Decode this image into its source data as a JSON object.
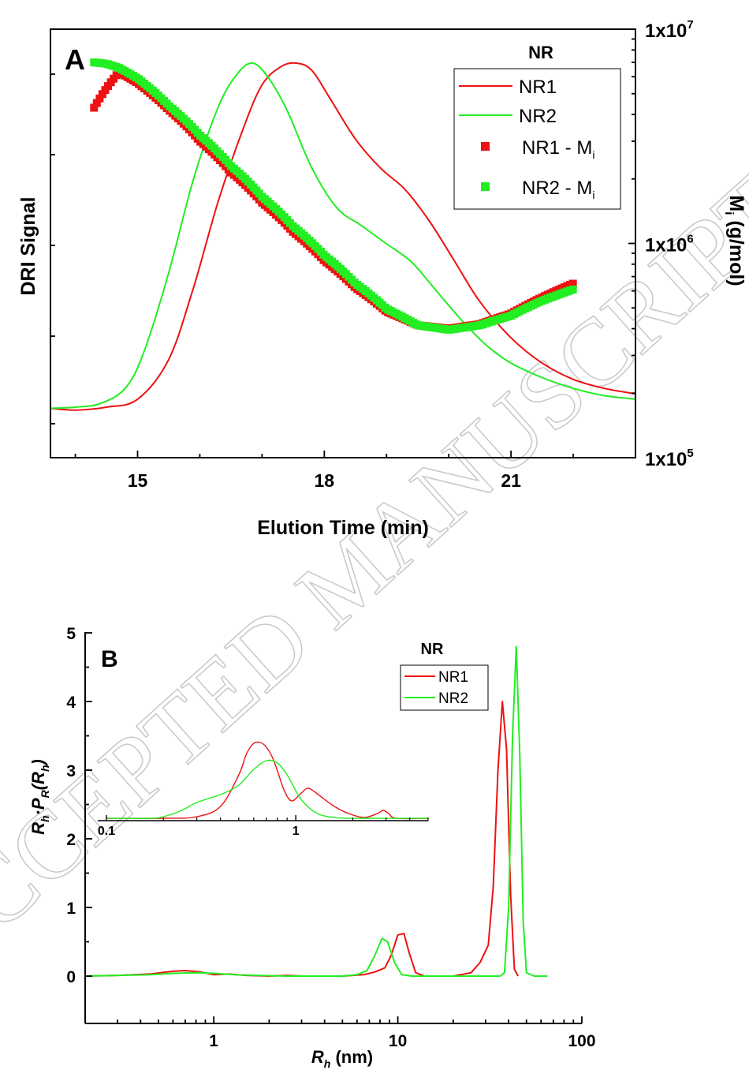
{
  "watermark": "ACCEPTED MANUSCRIPT",
  "colors": {
    "nr1": "#ee1111",
    "nr2": "#22ee22"
  },
  "chart_data": [
    {
      "id": "A",
      "type": "line",
      "panel_label": "A",
      "xlabel": "Elution Time (min)",
      "ylabel": "DRI Signal",
      "y2label": "M",
      "y2label_sub": "i",
      "y2label_unit": " (g/mol)",
      "xlim": [
        13.6,
        23.0
      ],
      "xticks": [
        15,
        18,
        21
      ],
      "xtick_labels": [
        "15",
        "18",
        "21"
      ],
      "y2lim": [
        100000,
        10000000
      ],
      "y2scale": "log",
      "y2ticks": [
        {
          "base": "1x10",
          "exp": "5"
        },
        {
          "base": "1x10",
          "exp": "6"
        },
        {
          "base": "1x10",
          "exp": "7"
        }
      ],
      "legend_title": "NR",
      "legend": [
        {
          "label": "NR1",
          "sub": "",
          "kind": "line",
          "color": "#ee1111"
        },
        {
          "label": "NR2",
          "sub": "",
          "kind": "line",
          "color": "#22ee22"
        },
        {
          "label": "NR1 - M",
          "sub": "i",
          "kind": "marker",
          "color": "#ee1111"
        },
        {
          "label": "NR2 - M",
          "sub": "i",
          "kind": "marker",
          "color": "#22ee22"
        }
      ],
      "series": [
        {
          "name": "NR1",
          "axis": "left",
          "color": "#ee1111",
          "x": [
            13.6,
            14.0,
            14.5,
            15.0,
            15.5,
            15.9,
            16.3,
            16.7,
            17.0,
            17.3,
            17.55,
            17.8,
            18.1,
            18.5,
            18.9,
            19.3,
            19.7,
            20.1,
            20.5,
            21.0,
            21.5,
            22.0,
            22.5,
            23.0
          ],
          "y": [
            0.045,
            0.04,
            0.048,
            0.07,
            0.18,
            0.38,
            0.62,
            0.82,
            0.94,
            0.99,
            1.0,
            0.98,
            0.9,
            0.79,
            0.71,
            0.65,
            0.56,
            0.45,
            0.34,
            0.24,
            0.17,
            0.125,
            0.1,
            0.085
          ]
        },
        {
          "name": "NR2",
          "axis": "left",
          "color": "#22ee22",
          "x": [
            13.6,
            14.0,
            14.4,
            14.8,
            15.1,
            15.5,
            15.9,
            16.3,
            16.6,
            16.85,
            17.1,
            17.4,
            17.8,
            18.2,
            18.6,
            19.0,
            19.4,
            19.8,
            20.2,
            20.6,
            21.0,
            21.5,
            22.0,
            22.5,
            23.0
          ],
          "y": [
            0.045,
            0.048,
            0.058,
            0.1,
            0.2,
            0.42,
            0.68,
            0.88,
            0.97,
            1.0,
            0.96,
            0.87,
            0.71,
            0.6,
            0.55,
            0.5,
            0.45,
            0.37,
            0.29,
            0.22,
            0.17,
            0.13,
            0.1,
            0.08,
            0.07
          ]
        },
        {
          "name": "NR1 - Mi",
          "axis": "right",
          "color": "#ee1111",
          "x": [
            14.3,
            14.5,
            14.7,
            15.0,
            15.5,
            16.0,
            16.5,
            17.0,
            17.5,
            18.0,
            18.5,
            19.0,
            19.5,
            20.0,
            20.5,
            21.0,
            21.5,
            22.0
          ],
          "y": [
            4300000,
            5300000,
            6300000,
            5600000,
            4200000,
            3000000,
            2150000,
            1550000,
            1130000,
            830000,
            620000,
            480000,
            415000,
            400000,
            420000,
            470000,
            560000,
            650000
          ]
        },
        {
          "name": "NR2 - Mi",
          "axis": "right",
          "color": "#22ee22",
          "x": [
            14.3,
            14.5,
            14.7,
            15.0,
            15.5,
            16.0,
            16.5,
            17.0,
            17.5,
            18.0,
            18.5,
            19.0,
            19.5,
            20.0,
            20.5,
            21.0,
            21.5,
            22.0
          ],
          "y": [
            7000000,
            6900000,
            6600000,
            5900000,
            4400000,
            3200000,
            2300000,
            1650000,
            1200000,
            880000,
            650000,
            495000,
            415000,
            395000,
            415000,
            460000,
            540000,
            610000
          ]
        }
      ]
    },
    {
      "id": "B",
      "type": "line",
      "panel_label": "B",
      "xlabel": "R",
      "xlabel_sub": "h",
      "xlabel_unit": " (nm)",
      "ylabel_parts": [
        "R",
        "h",
        "·P",
        "R",
        "(R",
        "h",
        ")"
      ],
      "xscale": "log",
      "xlim": [
        0.2,
        100
      ],
      "ylim": [
        -0.2,
        5.0
      ],
      "xticks": [
        1,
        10,
        100
      ],
      "xtick_labels": [
        "1",
        "10",
        "100"
      ],
      "yticks": [
        0,
        1,
        2,
        3,
        4,
        5
      ],
      "ytick_labels": [
        "0",
        "1",
        "2",
        "3",
        "4",
        "5"
      ],
      "legend_title": "NR",
      "legend": [
        {
          "label": "NR1",
          "color": "#ee1111"
        },
        {
          "label": "NR2",
          "color": "#22ee22"
        }
      ],
      "series": [
        {
          "name": "NR1",
          "color": "#ee1111",
          "x": [
            0.2,
            0.3,
            0.45,
            0.6,
            0.7,
            0.85,
            1.0,
            1.2,
            1.5,
            2.0,
            2.5,
            3.0,
            5.0,
            6.5,
            7.5,
            8.5,
            9.2,
            10.0,
            10.8,
            11.5,
            12.5,
            14,
            20,
            25,
            28,
            31,
            33,
            35,
            37,
            39,
            41,
            43,
            45
          ],
          "y": [
            0,
            0.01,
            0.03,
            0.07,
            0.08,
            0.06,
            0.02,
            0.03,
            0.01,
            0.0,
            0.01,
            0.0,
            0.0,
            0.02,
            0.06,
            0.12,
            0.3,
            0.6,
            0.62,
            0.35,
            0.05,
            0.0,
            0.0,
            0.05,
            0.2,
            0.45,
            1.3,
            3.0,
            4.0,
            3.3,
            1.2,
            0.1,
            0.0
          ]
        },
        {
          "name": "NR2",
          "color": "#22ee22",
          "x": [
            0.2,
            0.3,
            0.45,
            0.6,
            0.8,
            1.0,
            1.3,
            1.7,
            2.5,
            3.5,
            5.0,
            6.0,
            6.8,
            7.5,
            8.2,
            8.8,
            9.6,
            10.5,
            12,
            20,
            30,
            36,
            38,
            40,
            42,
            44,
            46,
            48,
            50,
            55,
            65
          ],
          "y": [
            0,
            0.01,
            0.02,
            0.04,
            0.05,
            0.04,
            0.02,
            0.01,
            0.0,
            0.0,
            0.0,
            0.02,
            0.08,
            0.3,
            0.55,
            0.5,
            0.2,
            0.02,
            0.0,
            0.0,
            0.0,
            0.0,
            0.05,
            1.0,
            3.5,
            4.8,
            3.2,
            0.8,
            0.05,
            0.0,
            0.0
          ]
        }
      ],
      "inset": {
        "xscale": "log",
        "xlim": [
          0.1,
          5
        ],
        "ylim": [
          0,
          1.05
        ],
        "xticks": [
          0.1,
          1
        ],
        "xtick_labels": [
          "0.1",
          "1"
        ],
        "series": [
          {
            "name": "NR1",
            "color": "#ee1111",
            "x": [
              0.1,
              0.2,
              0.3,
              0.4,
              0.5,
              0.55,
              0.6,
              0.65,
              0.7,
              0.75,
              0.8,
              0.87,
              0.95,
              1.05,
              1.15,
              1.25,
              1.4,
              1.6,
              1.9,
              2.3,
              2.7,
              2.9,
              3.1,
              3.4,
              5
            ],
            "y": [
              0,
              0,
              0.02,
              0.15,
              0.55,
              0.82,
              0.95,
              0.96,
              0.9,
              0.78,
              0.6,
              0.35,
              0.22,
              0.3,
              0.38,
              0.34,
              0.25,
              0.15,
              0.06,
              0.01,
              0.06,
              0.1,
              0.06,
              0.0,
              0
            ]
          },
          {
            "name": "NR2",
            "color": "#22ee22",
            "x": [
              0.1,
              0.17,
              0.2,
              0.25,
              0.3,
              0.4,
              0.5,
              0.6,
              0.7,
              0.8,
              0.9,
              1.0,
              1.1,
              1.3,
              1.6,
              2.0,
              5
            ],
            "y": [
              0,
              0,
              0.02,
              0.1,
              0.2,
              0.3,
              0.42,
              0.62,
              0.73,
              0.7,
              0.55,
              0.35,
              0.2,
              0.06,
              0.01,
              0,
              0
            ]
          }
        ]
      }
    }
  ]
}
